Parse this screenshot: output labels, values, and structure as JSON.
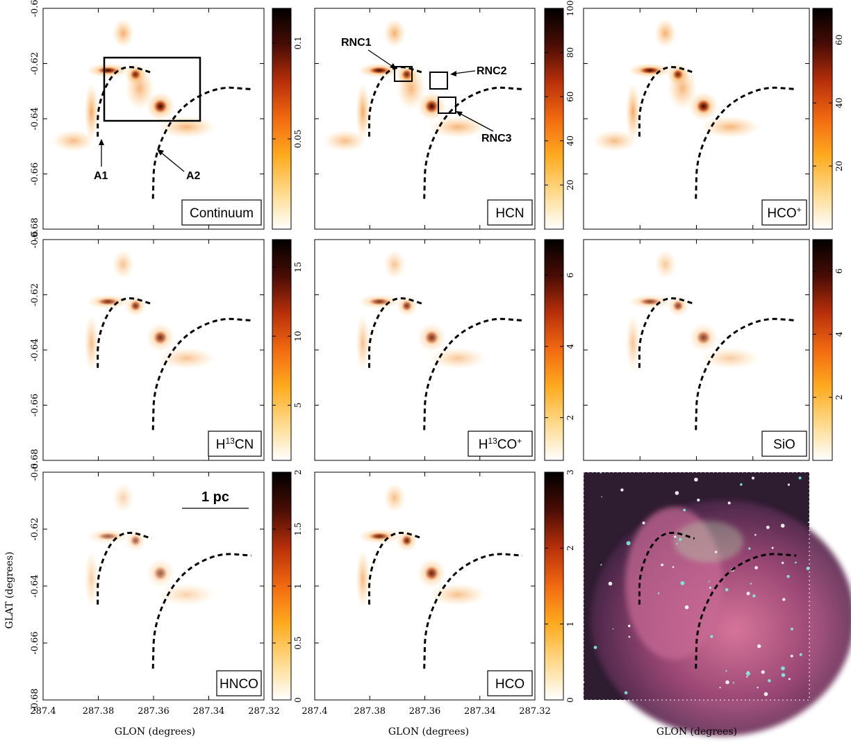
{
  "chart_data": {
    "type": "heatmap",
    "xlabel": "GLON (degrees)",
    "ylabel": "GLAT (degrees)",
    "xlim": [
      287.4,
      287.32
    ],
    "ylim": [
      -0.68,
      -0.6
    ],
    "xticks": [
      287.4,
      287.38,
      287.36,
      287.34,
      287.32
    ],
    "x_tick_labels": [
      "287.4",
      "287.38",
      "287.36",
      "287.34",
      "287.32"
    ],
    "yticks": [
      -0.6,
      -0.62,
      -0.64,
      -0.66,
      -0.68
    ],
    "y_tick_labels": [
      "-0.6",
      "-0.62",
      "-0.64",
      "-0.66",
      "-0.68"
    ],
    "colormap_colors": [
      "#ffffff",
      "#ffd98a",
      "#ffab1f",
      "#f26a10",
      "#b8300a",
      "#4a0d05",
      "#000000"
    ],
    "arcs": [
      {
        "name": "A1",
        "points": [
          [
            287.3802,
            -0.6465
          ],
          [
            287.3802,
            -0.6353
          ],
          [
            287.3755,
            -0.6242
          ],
          [
            287.3693,
            -0.6205
          ],
          [
            287.3607,
            -0.6233
          ]
        ]
      },
      {
        "name": "A2",
        "points": [
          [
            287.3602,
            -0.669
          ],
          [
            287.3598,
            -0.6528
          ],
          [
            287.3514,
            -0.6363
          ],
          [
            287.3372,
            -0.6283
          ],
          [
            287.3246,
            -0.6293
          ]
        ]
      }
    ],
    "panels": [
      {
        "label": "Continuum",
        "colorbar_ticks": [
          0.05,
          0.1
        ],
        "colorbar_tick_labels": [
          "0.05",
          "0.1"
        ],
        "colorbar_range": [
          0.003,
          0.118
        ]
      },
      {
        "label": "HCN",
        "colorbar_ticks": [
          20,
          40,
          60,
          80,
          100
        ],
        "colorbar_tick_labels": [
          "20",
          "40",
          "60",
          "80",
          "100"
        ],
        "colorbar_range": [
          0,
          100
        ]
      },
      {
        "label": "HCO+",
        "label_main": "HCO",
        "label_sup": "+",
        "colorbar_ticks": [
          20,
          40,
          60
        ],
        "colorbar_tick_labels": [
          "20",
          "40",
          "60"
        ],
        "colorbar_range": [
          0,
          70
        ]
      },
      {
        "label": "H13CN",
        "label_main_pre": "H",
        "label_sup_mid": "13",
        "label_main_post": "CN",
        "colorbar_ticks": [
          5,
          10,
          15
        ],
        "colorbar_tick_labels": [
          "5",
          "10",
          "15"
        ],
        "colorbar_range": [
          1,
          17
        ]
      },
      {
        "label": "H13CO+",
        "label_main_pre": "H",
        "label_sup_mid": "13",
        "label_main_post": "CO",
        "label_sup": "+",
        "colorbar_ticks": [
          2,
          4,
          6
        ],
        "colorbar_tick_labels": [
          "2",
          "4",
          "6"
        ],
        "colorbar_range": [
          0.8,
          7
        ]
      },
      {
        "label": "SiO",
        "colorbar_ticks": [
          2,
          4,
          6
        ],
        "colorbar_tick_labels": [
          "2",
          "4",
          "6"
        ],
        "colorbar_range": [
          0,
          7
        ]
      },
      {
        "label": "HNCO",
        "colorbar_ticks": [
          0,
          0.5,
          1,
          1.5,
          2
        ],
        "colorbar_tick_labels": [
          "0",
          "0.5",
          "1",
          "1.5",
          "2"
        ],
        "colorbar_range": [
          0,
          2
        ]
      },
      {
        "label": "HCO",
        "colorbar_ticks": [
          0,
          1,
          2,
          3
        ],
        "colorbar_tick_labels": [
          "0",
          "1",
          "2",
          "3"
        ],
        "colorbar_range": [
          0,
          3
        ]
      },
      {
        "label": "",
        "type": "rgb-composite"
      }
    ],
    "annotations": {
      "arc_labels": [
        "A1",
        "A2"
      ],
      "boxes": [
        "RNC1",
        "RNC2",
        "RNC3"
      ],
      "scale_bar": "1 pc"
    }
  }
}
